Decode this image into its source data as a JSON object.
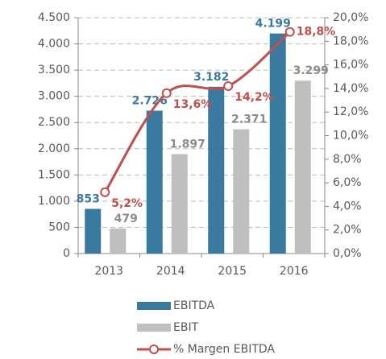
{
  "chart_data": {
    "type": "bar",
    "categories": [
      "2013",
      "2014",
      "2015",
      "2016"
    ],
    "series": [
      {
        "name": "EBITDA",
        "color": "#3a7aa0",
        "values": [
          853,
          2726,
          3182,
          4199
        ],
        "value_labels": [
          "853",
          "2.726",
          "3.182",
          "4.199"
        ]
      },
      {
        "name": "EBIT",
        "color": "#bfbfbf",
        "values": [
          479,
          1897,
          2371,
          3299
        ],
        "value_labels": [
          "479",
          "1.897",
          "2.371",
          "3.299"
        ]
      },
      {
        "name": "% Margen EBITDA",
        "type": "line",
        "axis": "y2",
        "color": "#c0504d",
        "values": [
          5.2,
          13.6,
          14.2,
          18.8
        ],
        "value_labels": [
          "5,2%",
          "13,6%",
          "14,2%",
          "18,8%"
        ]
      }
    ],
    "ylim": [
      0,
      4500
    ],
    "yticks": [
      0,
      500,
      {
        "value": 1000,
        "label": "1.000"
      },
      {
        "value": 1500,
        "label": "1.500"
      },
      {
        "value": 2000,
        "label": "2.000"
      },
      {
        "value": 2500,
        "label": "2.500"
      },
      {
        "value": 3000,
        "label": "3.000"
      },
      {
        "value": 3500,
        "label": "3.500"
      },
      {
        "value": 4000,
        "label": "4.000"
      },
      {
        "value": 4500,
        "label": "4.500"
      }
    ],
    "y2lim": [
      0,
      20
    ],
    "y2ticks": [
      {
        "value": 0,
        "label": "0,0%"
      },
      {
        "value": 2,
        "label": "2,0%"
      },
      {
        "value": 4,
        "label": "4,0%"
      },
      {
        "value": 6,
        "label": "6,0%"
      },
      {
        "value": 8,
        "label": "8,0%"
      },
      {
        "value": 10,
        "label": "10,0%"
      },
      {
        "value": 12,
        "label": "12,0%"
      },
      {
        "value": 14,
        "label": "14,0%"
      },
      {
        "value": 16,
        "label": "16,0%"
      },
      {
        "value": 18,
        "label": "18,0%"
      },
      {
        "value": 20,
        "label": "20,0%"
      }
    ],
    "grid": true
  }
}
